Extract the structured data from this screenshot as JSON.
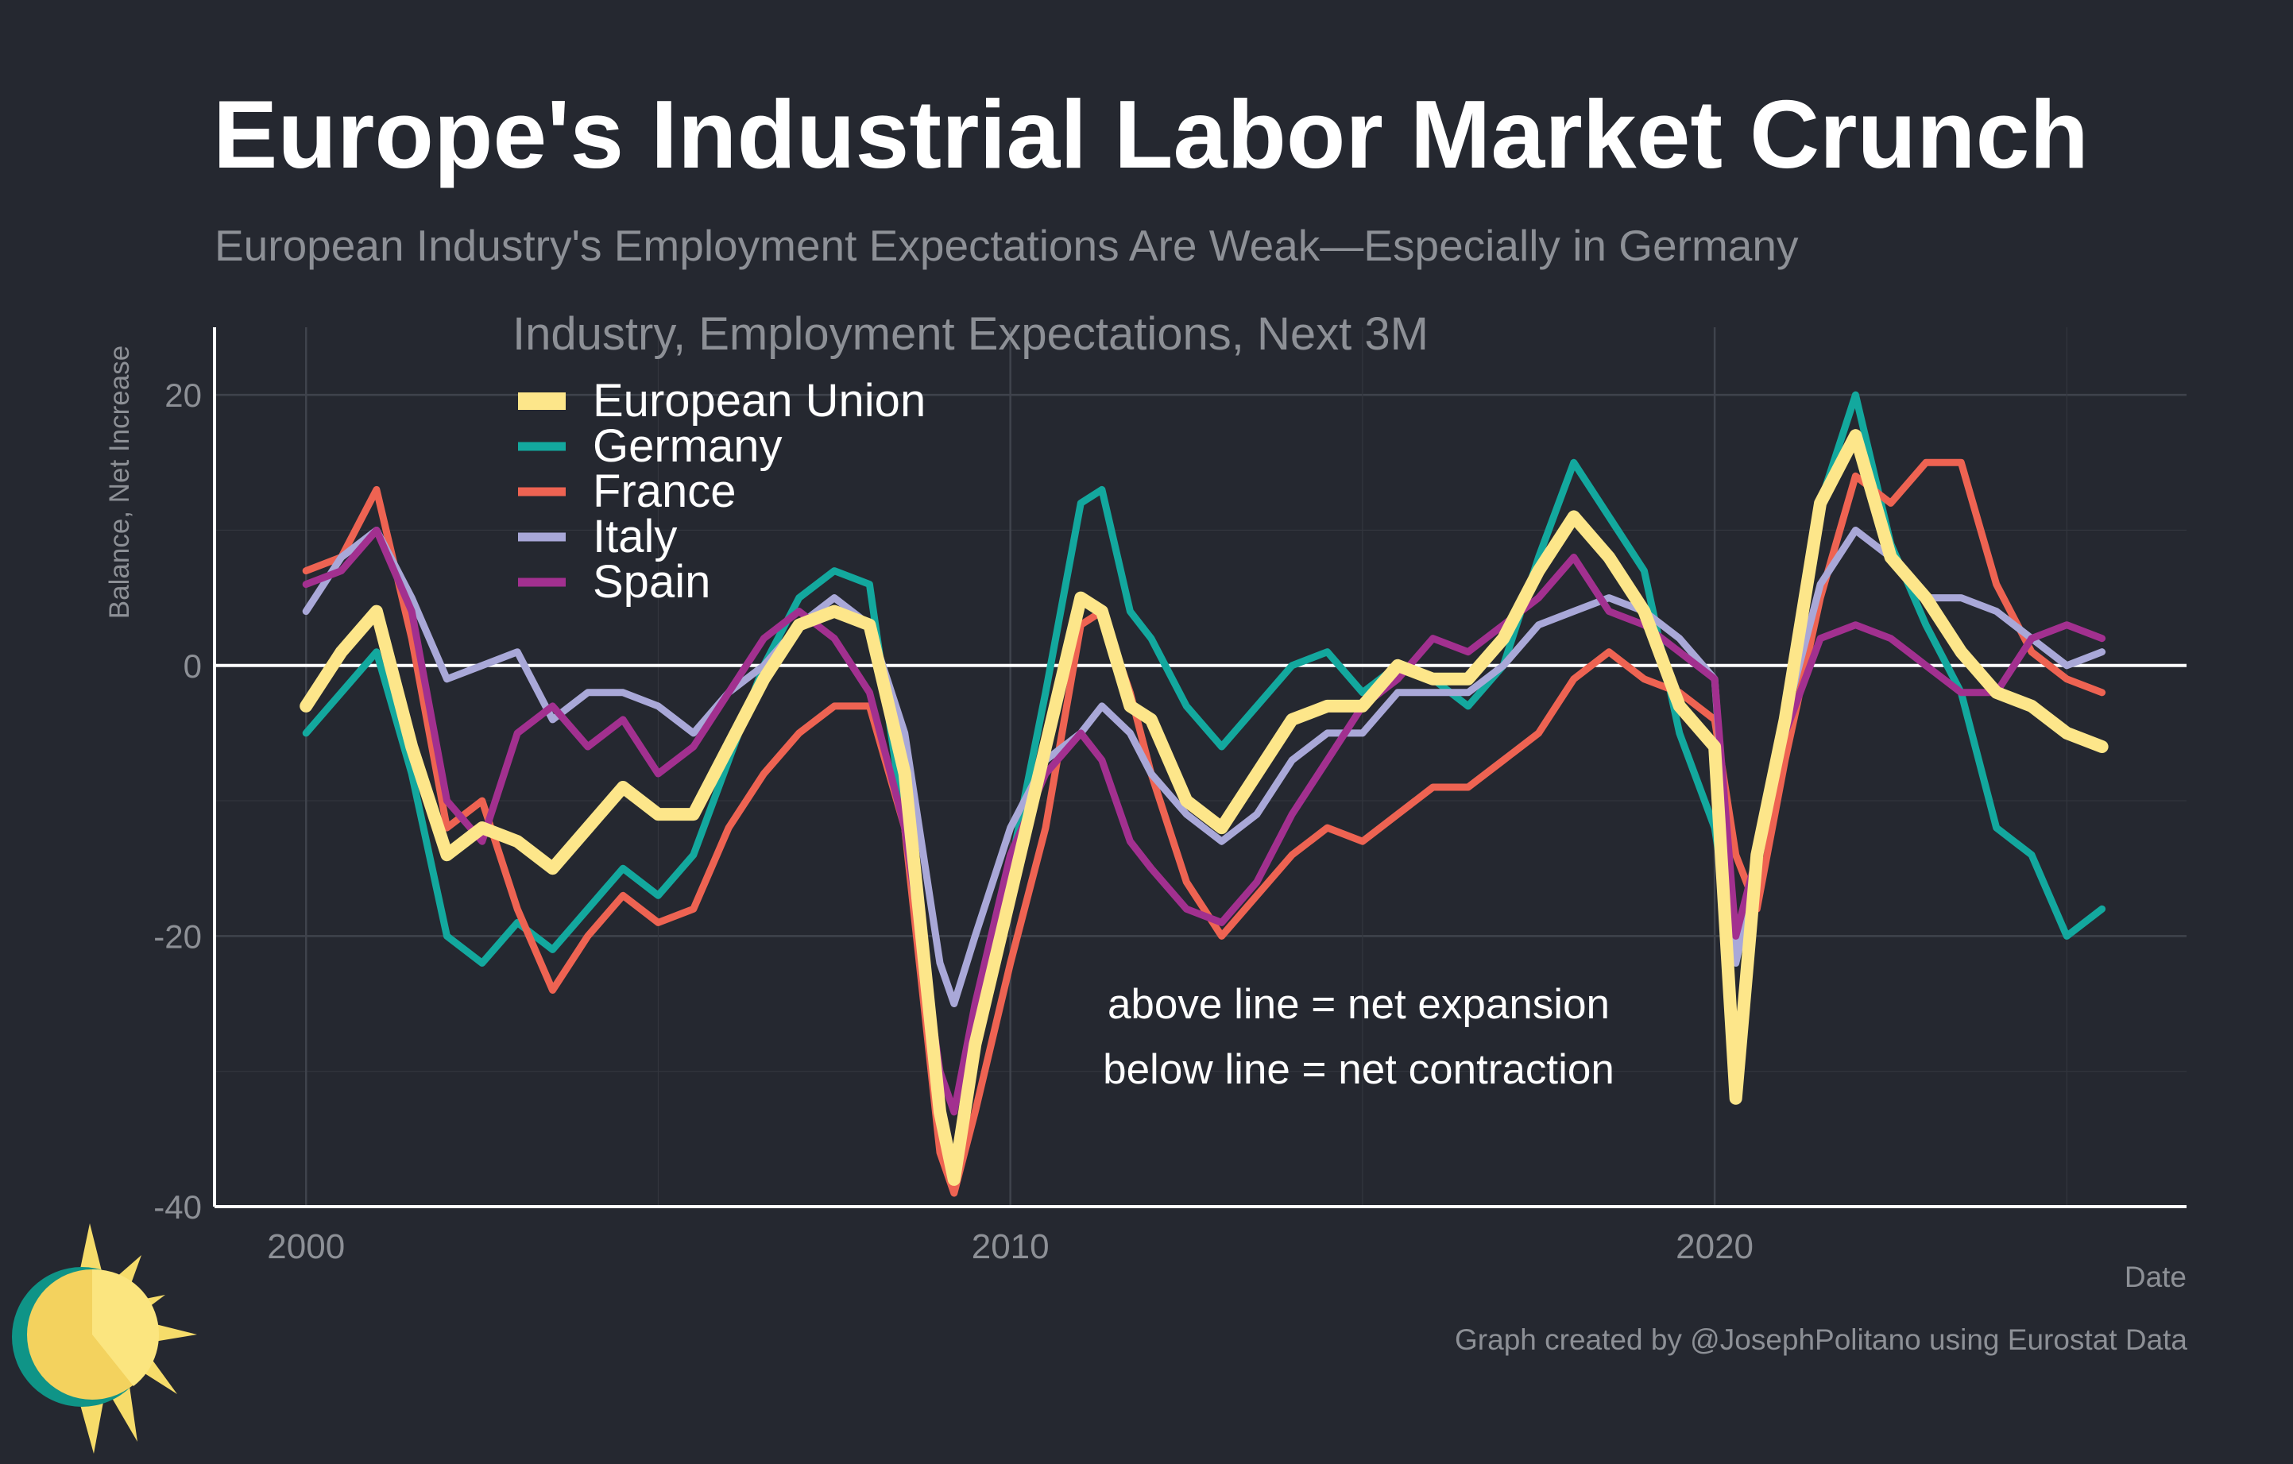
{
  "title": "Europe's Industrial Labor Market Crunch",
  "subtitle": "European Industry's Employment Expectations Are Weak—Especially in Germany",
  "credit": "Graph created by @JosephPolitano using Eurostat Data",
  "chart_data": {
    "type": "line",
    "title": "Industry, Employment Expectations, Next 3M",
    "xlabel": "Date",
    "ylabel": "Balance, Net Increase",
    "xlim": [
      1998.7,
      2026.7
    ],
    "ylim": [
      -40,
      25
    ],
    "xticks": [
      2000,
      2010,
      2020
    ],
    "xtick_labels": [
      "2000",
      "2010",
      "2020"
    ],
    "yticks": [
      -40,
      -20,
      0,
      20
    ],
    "ytick_labels": [
      "-40",
      "-20",
      "0",
      "20"
    ],
    "grid": true,
    "legend_position": "top-left",
    "reference_line": 0,
    "annotations": [
      "above line = net expansion",
      "below line = net contraction"
    ],
    "series": [
      {
        "name": "Germany",
        "color": "#13a89e",
        "x": [
          2000.0,
          2000.5,
          2001.0,
          2001.5,
          2002.0,
          2002.5,
          2003.0,
          2003.5,
          2004.0,
          2004.5,
          2005.0,
          2005.5,
          2006.0,
          2006.5,
          2007.0,
          2007.5,
          2008.0,
          2008.5,
          2009.0,
          2009.2,
          2009.5,
          2010.0,
          2010.5,
          2011.0,
          2011.3,
          2011.7,
          2012.0,
          2012.5,
          2013.0,
          2013.5,
          2014.0,
          2014.5,
          2015.0,
          2015.5,
          2016.0,
          2016.5,
          2017.0,
          2017.5,
          2018.0,
          2018.5,
          2019.0,
          2019.5,
          2020.0,
          2020.3,
          2020.6,
          2021.0,
          2021.5,
          2022.0,
          2022.5,
          2023.0,
          2023.5,
          2024.0,
          2024.5,
          2025.0,
          2025.5
        ],
        "y": [
          -5,
          -2,
          1,
          -8,
          -20,
          -22,
          -19,
          -21,
          -18,
          -15,
          -17,
          -14,
          -7,
          0,
          5,
          7,
          6,
          -12,
          -34,
          -37,
          -28,
          -15,
          -2,
          12,
          13,
          4,
          2,
          -3,
          -6,
          -3,
          0,
          1,
          -2,
          0,
          -1,
          -3,
          0,
          8,
          15,
          11,
          7,
          -5,
          -12,
          -22,
          -15,
          -3,
          12,
          20,
          9,
          3,
          -2,
          -12,
          -14,
          -20,
          -18
        ]
      },
      {
        "name": "France",
        "color": "#ee6352",
        "x": [
          2000.0,
          2000.5,
          2001.0,
          2001.5,
          2002.0,
          2002.5,
          2003.0,
          2003.5,
          2004.0,
          2004.5,
          2005.0,
          2005.5,
          2006.0,
          2006.5,
          2007.0,
          2007.5,
          2008.0,
          2008.5,
          2009.0,
          2009.2,
          2009.5,
          2010.0,
          2010.5,
          2011.0,
          2011.3,
          2011.7,
          2012.0,
          2012.5,
          2013.0,
          2013.5,
          2014.0,
          2014.5,
          2015.0,
          2015.5,
          2016.0,
          2016.5,
          2017.0,
          2017.5,
          2018.0,
          2018.5,
          2019.0,
          2019.5,
          2020.0,
          2020.3,
          2020.6,
          2021.0,
          2021.5,
          2022.0,
          2022.5,
          2023.0,
          2023.5,
          2024.0,
          2024.5,
          2025.0,
          2025.5
        ],
        "y": [
          7,
          8,
          13,
          2,
          -12,
          -10,
          -18,
          -24,
          -20,
          -17,
          -19,
          -18,
          -12,
          -8,
          -5,
          -3,
          -3,
          -12,
          -36,
          -39,
          -33,
          -22,
          -12,
          3,
          4,
          -2,
          -8,
          -16,
          -20,
          -17,
          -14,
          -12,
          -13,
          -11,
          -9,
          -9,
          -7,
          -5,
          -1,
          1,
          -1,
          -2,
          -4,
          -14,
          -18,
          -7,
          5,
          14,
          12,
          15,
          15,
          6,
          1,
          -1,
          -2
        ]
      },
      {
        "name": "Italy",
        "color": "#a9a8d8",
        "x": [
          2000.0,
          2000.5,
          2001.0,
          2001.5,
          2002.0,
          2002.5,
          2003.0,
          2003.5,
          2004.0,
          2004.5,
          2005.0,
          2005.5,
          2006.0,
          2006.5,
          2007.0,
          2007.5,
          2008.0,
          2008.5,
          2009.0,
          2009.2,
          2009.5,
          2010.0,
          2010.5,
          2011.0,
          2011.3,
          2011.7,
          2012.0,
          2012.5,
          2013.0,
          2013.5,
          2014.0,
          2014.5,
          2015.0,
          2015.5,
          2016.0,
          2016.5,
          2017.0,
          2017.5,
          2018.0,
          2018.5,
          2019.0,
          2019.5,
          2020.0,
          2020.3,
          2020.6,
          2021.0,
          2021.5,
          2022.0,
          2022.5,
          2023.0,
          2023.5,
          2024.0,
          2024.5,
          2025.0,
          2025.5
        ],
        "y": [
          4,
          8,
          10,
          5,
          -1,
          0,
          1,
          -4,
          -2,
          -2,
          -3,
          -5,
          -2,
          0,
          3,
          5,
          3,
          -5,
          -22,
          -25,
          -20,
          -12,
          -7,
          -5,
          -3,
          -5,
          -8,
          -11,
          -13,
          -11,
          -7,
          -5,
          -5,
          -2,
          -2,
          -2,
          0,
          3,
          4,
          5,
          4,
          2,
          -1,
          -22,
          -15,
          -4,
          6,
          10,
          8,
          5,
          5,
          4,
          2,
          0,
          1
        ]
      },
      {
        "name": "Spain",
        "color": "#a2308f",
        "x": [
          2000.0,
          2000.5,
          2001.0,
          2001.5,
          2002.0,
          2002.5,
          2003.0,
          2003.5,
          2004.0,
          2004.5,
          2005.0,
          2005.5,
          2006.0,
          2006.5,
          2007.0,
          2007.5,
          2008.0,
          2008.5,
          2009.0,
          2009.2,
          2009.5,
          2010.0,
          2010.5,
          2011.0,
          2011.3,
          2011.7,
          2012.0,
          2012.5,
          2013.0,
          2013.5,
          2014.0,
          2014.5,
          2015.0,
          2015.5,
          2016.0,
          2016.5,
          2017.0,
          2017.5,
          2018.0,
          2018.5,
          2019.0,
          2019.5,
          2020.0,
          2020.3,
          2020.6,
          2021.0,
          2021.5,
          2022.0,
          2022.5,
          2023.0,
          2023.5,
          2024.0,
          2024.5,
          2025.0,
          2025.5
        ],
        "y": [
          6,
          7,
          10,
          4,
          -10,
          -13,
          -5,
          -3,
          -6,
          -4,
          -8,
          -6,
          -2,
          2,
          4,
          2,
          -2,
          -12,
          -30,
          -33,
          -25,
          -14,
          -8,
          -5,
          -7,
          -13,
          -15,
          -18,
          -19,
          -16,
          -11,
          -7,
          -3,
          -1,
          2,
          1,
          3,
          5,
          8,
          4,
          3,
          1,
          -1,
          -20,
          -14,
          -5,
          2,
          3,
          2,
          0,
          -2,
          -2,
          2,
          3,
          2
        ]
      },
      {
        "name": "European Union",
        "color": "#fde68a",
        "x": [
          2000.0,
          2000.5,
          2001.0,
          2001.5,
          2002.0,
          2002.5,
          2003.0,
          2003.5,
          2004.0,
          2004.5,
          2005.0,
          2005.5,
          2006.0,
          2006.5,
          2007.0,
          2007.5,
          2008.0,
          2008.5,
          2009.0,
          2009.2,
          2009.5,
          2010.0,
          2010.5,
          2011.0,
          2011.3,
          2011.7,
          2012.0,
          2012.5,
          2013.0,
          2013.5,
          2014.0,
          2014.5,
          2015.0,
          2015.5,
          2016.0,
          2016.5,
          2017.0,
          2017.5,
          2018.0,
          2018.5,
          2019.0,
          2019.5,
          2020.0,
          2020.3,
          2020.6,
          2021.0,
          2021.5,
          2022.0,
          2022.5,
          2023.0,
          2023.5,
          2024.0,
          2024.5,
          2025.0,
          2025.5
        ],
        "y": [
          -3,
          1,
          4,
          -6,
          -14,
          -12,
          -13,
          -15,
          -12,
          -9,
          -11,
          -11,
          -6,
          -1,
          3,
          4,
          3,
          -8,
          -33,
          -38,
          -28,
          -17,
          -6,
          5,
          4,
          -3,
          -4,
          -10,
          -12,
          -8,
          -4,
          -3,
          -3,
          0,
          -1,
          -1,
          2,
          7,
          11,
          8,
          4,
          -3,
          -6,
          -32,
          -14,
          -4,
          12,
          17,
          8,
          5,
          1,
          -2,
          -3,
          -5,
          -6
        ]
      }
    ]
  }
}
